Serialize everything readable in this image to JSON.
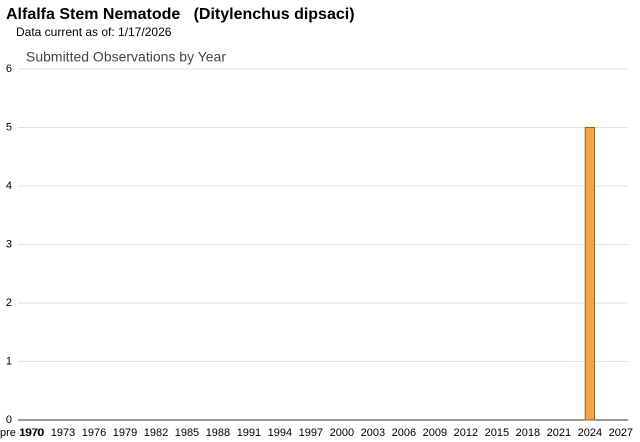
{
  "header": {
    "title": "Alfalfa Stem Nematode   (Ditylenchus dipsaci)",
    "subtitle": "Data current as of: 1/17/2026"
  },
  "chart_data": {
    "type": "bar",
    "title": "Submitted Observations by Year",
    "categories": [
      "pre 1970",
      "1970",
      null,
      null,
      "1973",
      null,
      null,
      "1976",
      null,
      null,
      "1979",
      null,
      null,
      "1982",
      null,
      null,
      "1985",
      null,
      null,
      "1988",
      null,
      null,
      "1991",
      null,
      null,
      "1994",
      null,
      null,
      "1997",
      null,
      null,
      "2000",
      null,
      null,
      "2003",
      null,
      null,
      "2006",
      null,
      null,
      "2009",
      null,
      null,
      "2012",
      null,
      null,
      "2015",
      null,
      null,
      "2018",
      null,
      null,
      "2021",
      null,
      null,
      "2024",
      null,
      null,
      "2027"
    ],
    "values": [
      0,
      0,
      0,
      0,
      0,
      0,
      0,
      0,
      0,
      0,
      0,
      0,
      0,
      0,
      0,
      0,
      0,
      0,
      0,
      0,
      0,
      0,
      0,
      0,
      0,
      0,
      0,
      0,
      0,
      0,
      0,
      0,
      0,
      0,
      0,
      0,
      0,
      0,
      0,
      0,
      0,
      0,
      0,
      0,
      0,
      0,
      0,
      0,
      0,
      0,
      0,
      0,
      0,
      0,
      0,
      5,
      0,
      0,
      0
    ],
    "color": "#f2a54a",
    "ylim": [
      0,
      6
    ],
    "yticks": [
      0,
      1,
      2,
      3,
      4,
      5,
      6
    ],
    "grid": true
  }
}
